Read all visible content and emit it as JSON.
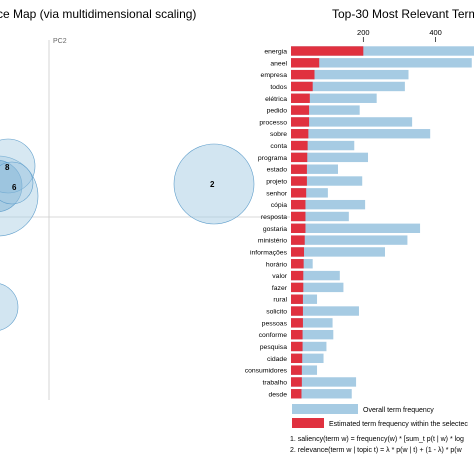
{
  "chart_data": [
    {
      "type": "scatter",
      "title": "ce Map (via multidimensional scaling)",
      "axis_label_y": "PC2",
      "topics": [
        {
          "label": "8"
        },
        {
          "label": "6"
        },
        {
          "label": "2"
        }
      ]
    },
    {
      "type": "bar",
      "title": "Top-30 Most Relevant Terms f",
      "xticks": [
        "200",
        "400"
      ],
      "xlim": [
        0,
        520
      ],
      "categories": [
        "energia",
        "aneel",
        "empresa",
        "todos",
        "elétrica",
        "pedido",
        "processo",
        "sobre",
        "conta",
        "programa",
        "estado",
        "projeto",
        "senhor",
        "cópia",
        "resposta",
        "gostaria",
        "ministério",
        "informações",
        "horário",
        "valor",
        "fazer",
        "rural",
        "solicito",
        "pessoas",
        "conforme",
        "pesquisa",
        "cidade",
        "consumidores",
        "trabalho",
        "desde"
      ],
      "series": [
        {
          "name": "Overall term frequency",
          "color": "#a6cbe3",
          "values": [
            520,
            500,
            325,
            315,
            237,
            190,
            335,
            385,
            175,
            213,
            130,
            197,
            102,
            205,
            160,
            357,
            322,
            260,
            60,
            135,
            145,
            72,
            188,
            115,
            117,
            98,
            90,
            72,
            180,
            168
          ]
        },
        {
          "name": "Estimated term frequency within the selected",
          "color": "#e0313f",
          "values": [
            200,
            78,
            65,
            60,
            52,
            50,
            50,
            48,
            46,
            45,
            44,
            44,
            42,
            40,
            40,
            40,
            38,
            36,
            35,
            34,
            34,
            33,
            33,
            33,
            32,
            32,
            31,
            30,
            30,
            29
          ]
        }
      ]
    }
  ],
  "legend": {
    "overall": "Overall term frequency",
    "estimated": "Estimated term frequency within the selectec"
  },
  "formulas": {
    "saliency": "1. saliency(term w) = frequency(w) * [sum_t p(t | w) * log",
    "relevance": "2. relevance(term w | topic t) = λ * p(w | t) + (1 - λ) * p(w"
  }
}
